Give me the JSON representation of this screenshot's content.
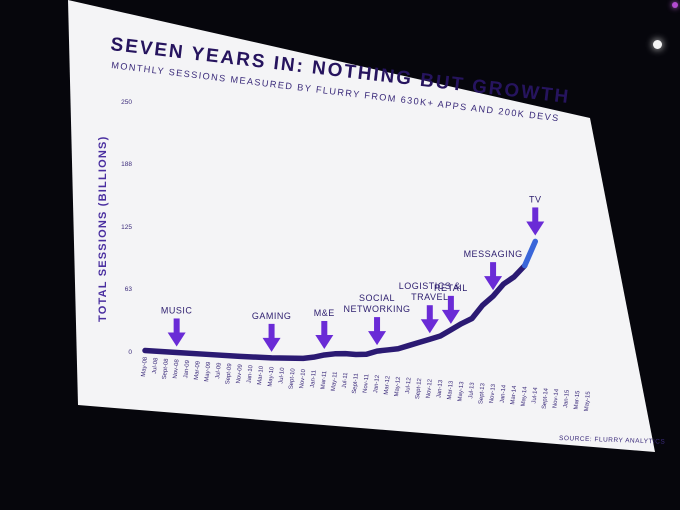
{
  "slide": {
    "title": "SEVEN YEARS IN: NOTHING BUT GROWTH",
    "subtitle": "MONTHLY SESSIONS MEASURED BY FLURRY FROM 630K+ APPS AND 200K DEVS",
    "source": "SOURCE: FLURRY ANALYTICS"
  },
  "colors": {
    "line": "#2b1a73",
    "line_highlight": "#3a66d9",
    "arrow": "#6a2bd6",
    "title": "#26145e",
    "text": "#3a2a7a",
    "slide_bg": "#f4f4f6"
  },
  "chart_data": {
    "type": "line",
    "title": "SEVEN YEARS IN: NOTHING BUT GROWTH",
    "subtitle": "MONTHLY SESSIONS MEASURED BY FLURRY FROM 630K+ APPS AND 200K DEVS",
    "xlabel": "",
    "ylabel": "TOTAL SESSIONS (BILLIONS)",
    "ylim": [
      0,
      250
    ],
    "yticks": [
      0,
      63,
      125,
      188,
      250
    ],
    "grid": false,
    "x_tick_labels": [
      "May-08",
      "Jul-08",
      "Sept-08",
      "Nov-08",
      "Jan-09",
      "Mar-09",
      "May-09",
      "Jul-09",
      "Sept-09",
      "Nov-09",
      "Jan-10",
      "Mar-10",
      "May-10",
      "Jul-10",
      "Sept-10",
      "Nov-10",
      "Jan-11",
      "Mar-11",
      "May-11",
      "Jul-11",
      "Sept-11",
      "Nov-11",
      "Jan-12",
      "Mar-12",
      "May-12",
      "Jul-12",
      "Sept-12",
      "Nov-12",
      "Jan-13",
      "Mar-13",
      "May-13",
      "Jul-13",
      "Sept-13",
      "Nov-13",
      "Jan-14",
      "Mar-14",
      "May-14",
      "Jul-14",
      "Sept-14",
      "Nov-14",
      "Jan-15",
      "Mar-15",
      "May-15"
    ],
    "x": [
      "May-08",
      "Nov-08",
      "May-09",
      "Nov-09",
      "May-10",
      "Nov-10",
      "Jan-11",
      "Mar-11",
      "May-11",
      "Jul-11",
      "Sept-11",
      "Nov-11",
      "Jan-12",
      "Mar-12",
      "May-12",
      "Jul-12",
      "Sept-12",
      "Nov-12",
      "Jan-13",
      "Mar-13",
      "May-13",
      "Jul-13",
      "Sept-13",
      "Nov-13",
      "Jan-14",
      "Mar-14",
      "May-14",
      "Jul-14"
    ],
    "series": [
      {
        "values": [
          0.5,
          1,
          1.5,
          2,
          3,
          5,
          7,
          10,
          12,
          13,
          13,
          14,
          18,
          20,
          22,
          26,
          30,
          34,
          38,
          45,
          52,
          58,
          72,
          82,
          95,
          103,
          115,
          140
        ]
      }
    ],
    "annotations": [
      {
        "label": "MUSIC",
        "x": "Nov-08"
      },
      {
        "label": "GAMING",
        "x": "May-10"
      },
      {
        "label": "M&E",
        "x": "Mar-11"
      },
      {
        "label": "SOCIAL\nNETWORKING",
        "x": "Jan-12"
      },
      {
        "label": "LOGISTICS &\nTRAVEL",
        "x": "Nov-12"
      },
      {
        "label": "RETAIL",
        "x": "Mar-13"
      },
      {
        "label": "MESSAGING",
        "x": "Nov-13"
      },
      {
        "label": "TV",
        "x": "Jul-14"
      }
    ]
  }
}
